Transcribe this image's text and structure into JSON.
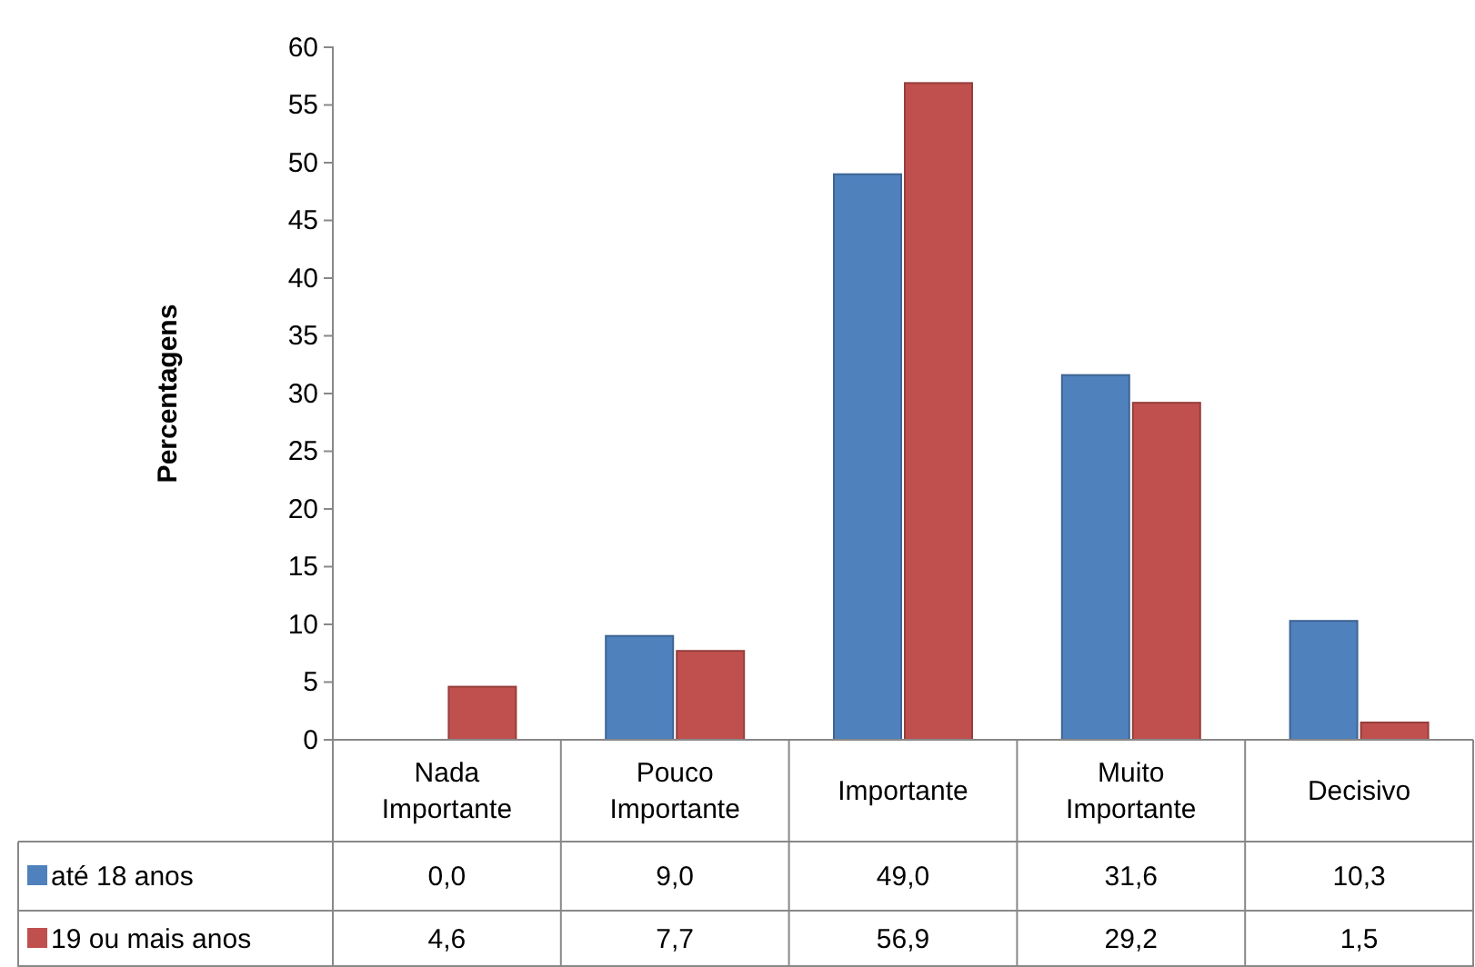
{
  "chart_data": {
    "type": "bar",
    "ylabel": "Percentagens",
    "categories": [
      "Nada Importante",
      "Pouco Importante",
      "Importante",
      "Muito Importante",
      "Decisivo"
    ],
    "series": [
      {
        "name": "até 18 anos",
        "color": "#4f81bd",
        "values": [
          0.0,
          9.0,
          49.0,
          31.6,
          10.3
        ],
        "value_labels": [
          "0,0",
          "9,0",
          "49,0",
          "31,6",
          "10,3"
        ]
      },
      {
        "name": "19 ou mais anos",
        "color": "#c0504d",
        "values": [
          4.6,
          7.7,
          56.9,
          29.2,
          1.5
        ],
        "value_labels": [
          "4,6",
          "7,7",
          "56,9",
          "29,2",
          "1,5"
        ]
      }
    ],
    "ylim": [
      0,
      60
    ],
    "yticks": [
      0,
      5,
      10,
      15,
      20,
      25,
      30,
      35,
      40,
      45,
      50,
      55,
      60
    ],
    "grid": false,
    "legend": "bottom"
  }
}
